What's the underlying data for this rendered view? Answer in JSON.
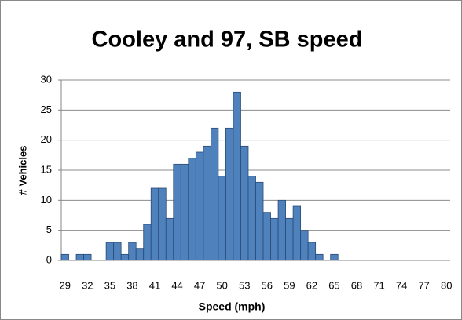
{
  "chart_data": {
    "type": "bar",
    "title": "Cooley and 97, SB speed",
    "x_label": "Speed (mph)",
    "y_label": "# Vehicles",
    "categories": [
      "29",
      null,
      null,
      "32",
      null,
      null,
      "35",
      null,
      null,
      "38",
      null,
      null,
      "41",
      null,
      null,
      "44",
      null,
      null,
      "47",
      null,
      null,
      "50",
      null,
      null,
      "53",
      null,
      null,
      "56",
      null,
      null,
      "59",
      null,
      null,
      "62",
      null,
      null,
      "65",
      null,
      null,
      "68",
      null,
      null,
      "71",
      null,
      null,
      "74",
      null,
      null,
      "77",
      null,
      null,
      "80"
    ],
    "values": [
      1,
      0,
      1,
      1,
      0,
      0,
      3,
      3,
      1,
      3,
      2,
      6,
      12,
      12,
      7,
      16,
      16,
      17,
      18,
      19,
      22,
      14,
      22,
      28,
      19,
      14,
      13,
      8,
      7,
      10,
      7,
      9,
      5,
      3,
      1,
      0,
      1,
      0,
      0,
      0,
      0,
      0,
      0,
      0,
      0,
      0,
      0,
      0,
      0,
      0,
      0,
      0
    ],
    "color": "#4f81bd",
    "ylim": [
      0,
      30
    ],
    "yticks": [
      0,
      5,
      10,
      15,
      20,
      25,
      30
    ],
    "grid": true
  }
}
